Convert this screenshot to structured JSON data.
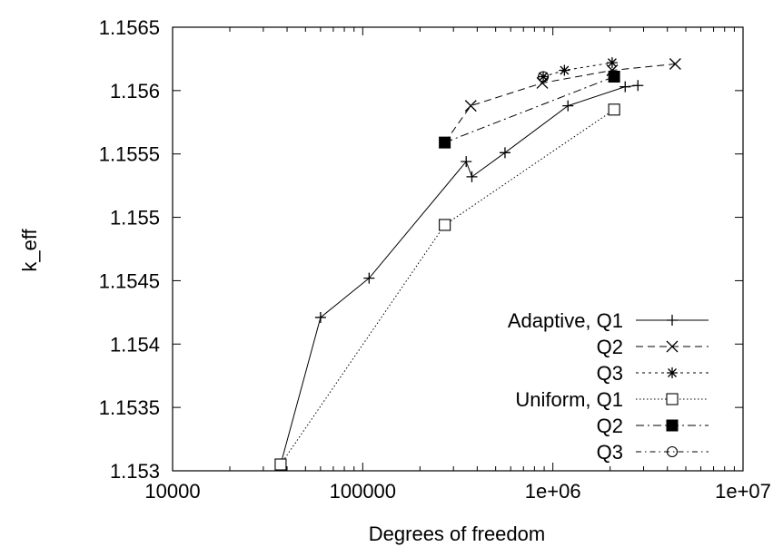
{
  "chart_data": {
    "type": "line",
    "title": "",
    "xlabel": "Degrees of freedom",
    "ylabel": "k_eff",
    "xscale": "log",
    "xlim": [
      10000,
      10000000
    ],
    "ylim": [
      1.153,
      1.1565
    ],
    "x_ticks": [
      "10000",
      "100000",
      "1e+06",
      "1e+07"
    ],
    "y_ticks": [
      "1.153",
      "1.1535",
      "1.154",
      "1.1545",
      "1.155",
      "1.1555",
      "1.156",
      "1.1565"
    ],
    "grid": false,
    "legend_position": "bottom-right",
    "series": [
      {
        "name": "Adaptive, Q1",
        "marker": "plus",
        "dash": "solid",
        "x": [
          37000,
          60000,
          108000,
          350000,
          375000,
          560000,
          1200000,
          2400000,
          2800000
        ],
        "y": [
          1.15305,
          1.15421,
          1.15452,
          1.15544,
          1.15532,
          1.15551,
          1.15588,
          1.15603,
          1.15604
        ]
      },
      {
        "name": "Q2",
        "marker": "cross",
        "dash": "dashed",
        "x": [
          270000,
          370000,
          880000,
          2050000,
          4400000
        ],
        "y": [
          1.15559,
          1.15588,
          1.15606,
          1.15616,
          1.15621
        ]
      },
      {
        "name": "Q3",
        "marker": "star",
        "dash": "dotted",
        "x": [
          890000,
          1150000,
          2050000
        ],
        "y": [
          1.15611,
          1.15616,
          1.15622
        ]
      },
      {
        "name": "Uniform, Q1",
        "marker": "square-open",
        "dash": "dotted-fine",
        "x": [
          37000,
          270000,
          2100000
        ],
        "y": [
          1.15305,
          1.15494,
          1.15585
        ]
      },
      {
        "name": "Q2",
        "marker": "square-filled",
        "dash": "dash-dot",
        "x": [
          270000,
          2100000
        ],
        "y": [
          1.15559,
          1.15611
        ]
      },
      {
        "name": "Q3",
        "marker": "circle-open",
        "dash": "dash-dot-fine",
        "x": [
          890000
        ],
        "y": [
          1.15611
        ]
      }
    ]
  }
}
